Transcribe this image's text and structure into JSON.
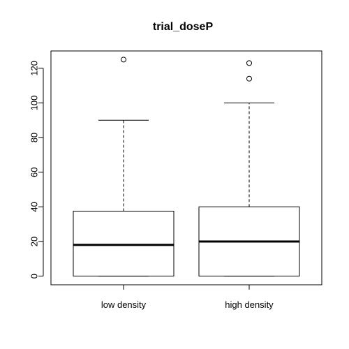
{
  "chart_data": {
    "type": "boxplot",
    "title": "trial_doseP",
    "xlabel": "",
    "ylabel": "",
    "categories": [
      "low density",
      "high density"
    ],
    "ylim": [
      -5,
      130
    ],
    "yticks": [
      0,
      20,
      40,
      60,
      80,
      100,
      120
    ],
    "grid": false,
    "legend": "none",
    "boxes": [
      {
        "label": "low density",
        "whisker_low": 0,
        "q1": 0,
        "median": 18,
        "q3": 37.5,
        "whisker_high": 90,
        "outliers": [
          125
        ]
      },
      {
        "label": "high density",
        "whisker_low": 0,
        "q1": 0,
        "median": 20,
        "q3": 40,
        "whisker_high": 100,
        "outliers": [
          114,
          123
        ]
      }
    ]
  }
}
